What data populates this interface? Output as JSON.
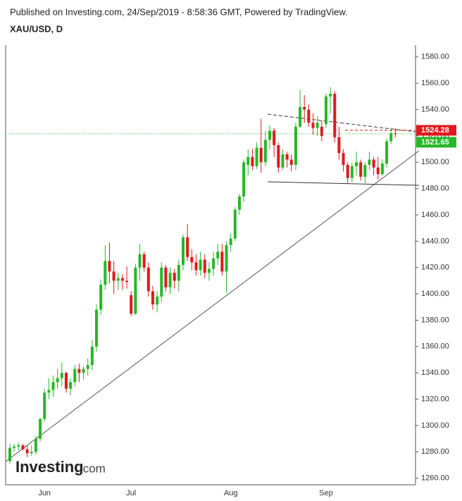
{
  "header": {
    "published": "Published on Investing.com, 24/Sep/2019 - 8:58:36 GMT, Powered by TradingView."
  },
  "logo": {
    "brand": "Investing",
    "suffix": ".com"
  },
  "chart_data": {
    "type": "candlestick",
    "title": "XAU/USD, D",
    "up_color": "#27b827",
    "down_color": "#e0191c",
    "categories": [
      null,
      null,
      null,
      null,
      null,
      null,
      null,
      null,
      "Jun",
      null,
      null,
      null,
      null,
      null,
      null,
      null,
      null,
      null,
      null,
      null,
      null,
      null,
      null,
      null,
      null,
      null,
      null,
      null,
      "Jul",
      null,
      null,
      null,
      null,
      null,
      null,
      null,
      null,
      null,
      null,
      null,
      null,
      null,
      null,
      null,
      null,
      null,
      null,
      null,
      null,
      null,
      null,
      "Aug",
      null,
      null,
      null,
      null,
      null,
      null,
      null,
      null,
      null,
      null,
      null,
      null,
      null,
      null,
      null,
      null,
      null,
      null,
      null,
      null,
      null,
      "Sep",
      null,
      null,
      null,
      null,
      null,
      null,
      null,
      null,
      null,
      null,
      null,
      null,
      null,
      null,
      null,
      null
    ],
    "values": [
      [
        1273,
        1286,
        1271,
        1283
      ],
      [
        1283,
        1286,
        1280,
        1284
      ],
      [
        1284,
        1287,
        1281,
        1285
      ],
      [
        1285,
        1286,
        1281,
        1282
      ],
      [
        1282,
        1285,
        1276,
        1279
      ],
      [
        1279,
        1285,
        1277,
        1280
      ],
      [
        1280,
        1292,
        1278,
        1290
      ],
      [
        1290,
        1306,
        1288,
        1305
      ],
      [
        1305,
        1328,
        1303,
        1325
      ],
      [
        1325,
        1336,
        1320,
        1327
      ],
      [
        1327,
        1338,
        1322,
        1333
      ],
      [
        1333,
        1343,
        1328,
        1336
      ],
      [
        1336,
        1348,
        1330,
        1340
      ],
      [
        1340,
        1341,
        1325,
        1328
      ],
      [
        1328,
        1336,
        1323,
        1333
      ],
      [
        1333,
        1346,
        1330,
        1343
      ],
      [
        1343,
        1347,
        1333,
        1340
      ],
      [
        1340,
        1345,
        1335,
        1343
      ],
      [
        1343,
        1351,
        1338,
        1346
      ],
      [
        1346,
        1365,
        1342,
        1360
      ],
      [
        1360,
        1392,
        1356,
        1388
      ],
      [
        1388,
        1411,
        1384,
        1407
      ],
      [
        1407,
        1437,
        1403,
        1425
      ],
      [
        1425,
        1439,
        1408,
        1417
      ],
      [
        1417,
        1425,
        1400,
        1410
      ],
      [
        1410,
        1416,
        1403,
        1412
      ],
      [
        1412,
        1415,
        1403,
        1410
      ],
      [
        1410,
        1421,
        1404,
        1409
      ],
      [
        1399,
        1402,
        1383,
        1385
      ],
      [
        1385,
        1423,
        1384,
        1420
      ],
      [
        1420,
        1438,
        1410,
        1430
      ],
      [
        1430,
        1432,
        1417,
        1420
      ],
      [
        1420,
        1424,
        1398,
        1402
      ],
      [
        1402,
        1406,
        1388,
        1392
      ],
      [
        1392,
        1402,
        1386,
        1398
      ],
      [
        1398,
        1424,
        1394,
        1420
      ],
      [
        1420,
        1422,
        1402,
        1405
      ],
      [
        1405,
        1420,
        1400,
        1416
      ],
      [
        1416,
        1419,
        1404,
        1410
      ],
      [
        1410,
        1426,
        1402,
        1422
      ],
      [
        1422,
        1445,
        1418,
        1443
      ],
      [
        1443,
        1453,
        1425,
        1428
      ],
      [
        1428,
        1434,
        1418,
        1424
      ],
      [
        1424,
        1430,
        1414,
        1418
      ],
      [
        1418,
        1432,
        1414,
        1426
      ],
      [
        1426,
        1430,
        1412,
        1416
      ],
      [
        1416,
        1424,
        1410,
        1419
      ],
      [
        1419,
        1432,
        1414,
        1427
      ],
      [
        1427,
        1438,
        1422,
        1432
      ],
      [
        1432,
        1438,
        1414,
        1417
      ],
      [
        1417,
        1440,
        1401,
        1437
      ],
      [
        1437,
        1446,
        1432,
        1442
      ],
      [
        1442,
        1466,
        1440,
        1464
      ],
      [
        1464,
        1476,
        1460,
        1474
      ],
      [
        1474,
        1502,
        1470,
        1500
      ],
      [
        1498,
        1510,
        1490,
        1504
      ],
      [
        1504,
        1510,
        1494,
        1497
      ],
      [
        1497,
        1515,
        1495,
        1511
      ],
      [
        1511,
        1533,
        1492,
        1500
      ],
      [
        1500,
        1524,
        1497,
        1517
      ],
      [
        1517,
        1528,
        1510,
        1524
      ],
      [
        1524,
        1526,
        1504,
        1513
      ],
      [
        1513,
        1515,
        1492,
        1496
      ],
      [
        1496,
        1510,
        1494,
        1506
      ],
      [
        1506,
        1508,
        1496,
        1502
      ],
      [
        1502,
        1506,
        1493,
        1498
      ],
      [
        1498,
        1530,
        1494,
        1527
      ],
      [
        1527,
        1555,
        1526,
        1542
      ],
      [
        1542,
        1551,
        1530,
        1540
      ],
      [
        1540,
        1544,
        1527,
        1530
      ],
      [
        1530,
        1537,
        1521,
        1526
      ],
      [
        1526,
        1535,
        1520,
        1530
      ],
      [
        1527,
        1532,
        1516,
        1520
      ],
      [
        1529,
        1552,
        1526,
        1550
      ],
      [
        1550,
        1557,
        1537,
        1552
      ],
      [
        1552,
        1554,
        1515,
        1519
      ],
      [
        1519,
        1527,
        1502,
        1507
      ],
      [
        1507,
        1510,
        1493,
        1498
      ],
      [
        1498,
        1500,
        1484,
        1488
      ],
      [
        1488,
        1500,
        1485,
        1497
      ],
      [
        1497,
        1508,
        1490,
        1500
      ],
      [
        1500,
        1502,
        1486,
        1489
      ],
      [
        1489,
        1500,
        1484,
        1498
      ],
      [
        1498,
        1508,
        1494,
        1502
      ],
      [
        1502,
        1504,
        1490,
        1496
      ],
      [
        1496,
        1504,
        1487,
        1491
      ],
      [
        1491,
        1502,
        1490,
        1499
      ],
      [
        1499,
        1518,
        1496,
        1516
      ],
      [
        1516,
        1526,
        1514,
        1522
      ],
      [
        1522,
        1526,
        1519,
        1521.65
      ]
    ],
    "ylim": [
      1255,
      1589
    ],
    "yticks": [
      {
        "value": 1260,
        "label": "1260.00"
      },
      {
        "value": 1280,
        "label": "1280.00"
      },
      {
        "value": 1300,
        "label": "1300.00"
      },
      {
        "value": 1320,
        "label": "1320.00"
      },
      {
        "value": 1340,
        "label": "1340.00"
      },
      {
        "value": 1360,
        "label": "1360.00"
      },
      {
        "value": 1380,
        "label": "1380.00"
      },
      {
        "value": 1400,
        "label": "1400.00"
      },
      {
        "value": 1420,
        "label": "1420.00"
      },
      {
        "value": 1440,
        "label": "1440.00"
      },
      {
        "value": 1460,
        "label": "1460.00"
      },
      {
        "value": 1480,
        "label": "1480.00"
      },
      {
        "value": 1500,
        "label": "1500.00"
      },
      {
        "value": 1520,
        "label": "1520.00"
      },
      {
        "value": 1540,
        "label": "1540.00"
      },
      {
        "value": 1560,
        "label": "1560.00"
      },
      {
        "value": 1580,
        "label": "1580.00"
      }
    ],
    "reference_price": 1524.28,
    "reference_color": "#e0191c",
    "last_price": 1521.65,
    "last_color": "#27b827"
  }
}
